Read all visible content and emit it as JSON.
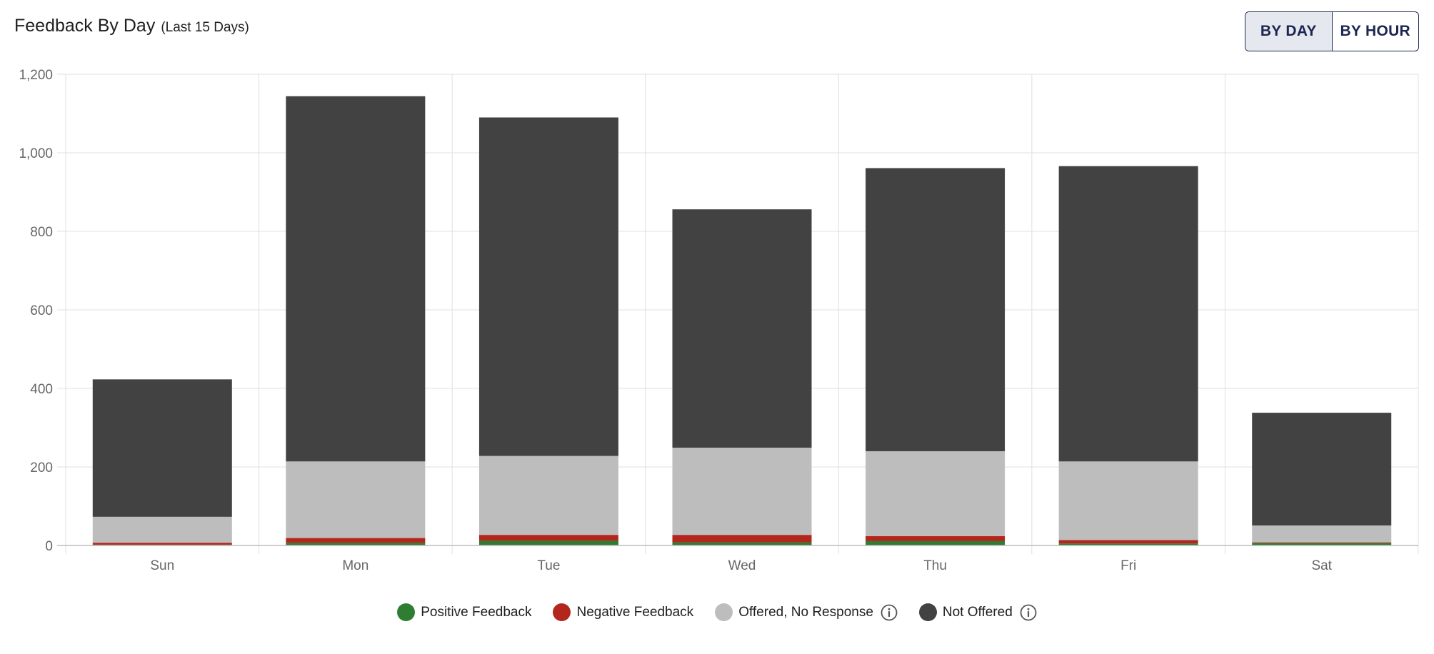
{
  "header": {
    "title": "Feedback By Day",
    "subtitle": "(Last 15 Days)"
  },
  "toggle": {
    "by_day_label": "BY DAY",
    "by_hour_label": "BY HOUR",
    "active": "by_day"
  },
  "legend": {
    "positive_label": "Positive Feedback",
    "negative_label": "Negative Feedback",
    "offered_label": "Offered, No Response",
    "not_offered_label": "Not Offered",
    "info_icon": "info-circle-icon"
  },
  "colors": {
    "positive": "#2e7d32",
    "negative": "#b3261e",
    "offered": "#bdbdbd",
    "not_offered": "#424242",
    "grid": "#e0e0e0",
    "axis_text": "#666666",
    "accent": "#1a2550"
  },
  "chart_data": {
    "type": "bar",
    "stacked": true,
    "title": "Feedback By Day",
    "subtitle": "(Last 15 Days)",
    "categories": [
      "Sun",
      "Mon",
      "Tue",
      "Wed",
      "Thu",
      "Fri",
      "Sat"
    ],
    "ylim": [
      0,
      1200
    ],
    "yticks": [
      0,
      200,
      400,
      600,
      800,
      1000,
      1200
    ],
    "ytick_labels": [
      "0",
      "200",
      "400",
      "600",
      "800",
      "1,000",
      "1,200"
    ],
    "grid": true,
    "legend_position": "bottom",
    "series": [
      {
        "name": "Positive Feedback",
        "values": [
          2,
          7,
          12,
          8,
          11,
          5,
          6
        ]
      },
      {
        "name": "Negative Feedback",
        "values": [
          5,
          12,
          15,
          19,
          13,
          9,
          2
        ]
      },
      {
        "name": "Offered, No Response",
        "values": [
          66,
          195,
          201,
          222,
          216,
          200,
          43
        ]
      },
      {
        "name": "Not Offered",
        "values": [
          350,
          930,
          862,
          607,
          721,
          752,
          287
        ]
      }
    ]
  }
}
